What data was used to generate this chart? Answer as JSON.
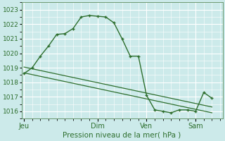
{
  "xlabel": "Pression niveau de la mer( hPa )",
  "background_color": "#cceaea",
  "grid_color": "#ffffff",
  "line_color": "#2d6e2d",
  "ylim": [
    1015.5,
    1023.5
  ],
  "yticks": [
    1016,
    1017,
    1018,
    1019,
    1020,
    1021,
    1022,
    1023
  ],
  "x_tick_labels": [
    "Jeu",
    "Dim",
    "Ven",
    "Sam"
  ],
  "x_tick_positions": [
    0,
    9,
    15,
    21
  ],
  "xlim": [
    -0.3,
    24.3
  ],
  "main_x": [
    0,
    1,
    2,
    3,
    4,
    5,
    6,
    7,
    8,
    9,
    10,
    11,
    12,
    13,
    14,
    15,
    16,
    17,
    18,
    19,
    20,
    21,
    22,
    23
  ],
  "main_y": [
    1018.6,
    1019.0,
    1019.8,
    1020.5,
    1021.3,
    1021.35,
    1021.7,
    1022.5,
    1022.6,
    1022.55,
    1022.5,
    1022.1,
    1021.0,
    1019.8,
    1019.8,
    1017.1,
    1016.1,
    1016.0,
    1015.9,
    1016.1,
    1016.1,
    1016.0,
    1017.3,
    1016.9
  ],
  "trend1_x": [
    0,
    23
  ],
  "trend1_y": [
    1019.05,
    1016.3
  ],
  "trend2_x": [
    0,
    23
  ],
  "trend2_y": [
    1018.65,
    1015.9
  ]
}
